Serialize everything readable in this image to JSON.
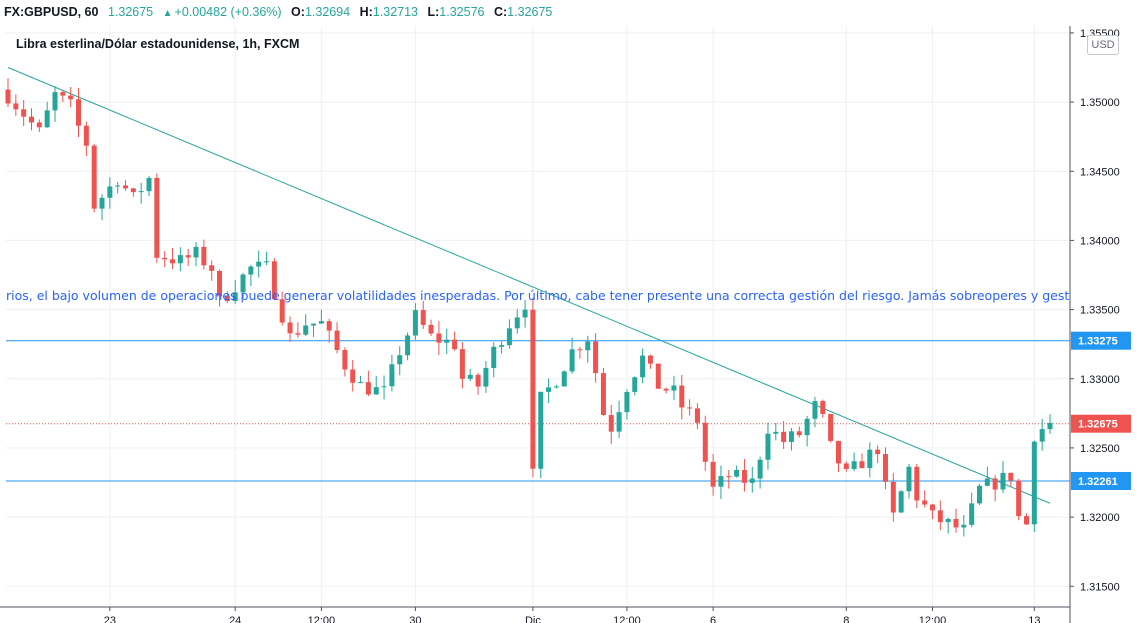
{
  "header": {
    "symbol": "FX:GBPUSD, 60",
    "last": "1.32675",
    "change": "+0.00482 (+0.36%)",
    "open_label": "O:",
    "open": "1.32694",
    "high_label": "H:",
    "high": "1.32713",
    "low_label": "L:",
    "low": "1.32576",
    "close_label": "C:",
    "close": "1.32675"
  },
  "ticker_text": "rios, el bajo volumen de operaciones puede generar volatilidades inesperadas. Por último, cabe tener presente una correcta gestión del riesgo. Jamás sobreoperes y gest",
  "currency_button": "USD",
  "colors": {
    "up": "#26a69a",
    "down": "#ef5350",
    "line": "#2196f3",
    "trend": "#26a69a",
    "price": "#ef5350",
    "text": "#2962ff"
  },
  "chart_data": {
    "type": "candlestick",
    "title": "Libra esterlina/Dólar estadounidense, 1h, FXCM",
    "ylim": [
      1.3135,
      1.3555
    ],
    "y_ticks": [
      "1.35500",
      "1.35000",
      "1.34500",
      "1.34000",
      "1.33500",
      "1.33000",
      "1.32500",
      "1.32000",
      "1.31500"
    ],
    "y_tick_values": [
      1.355,
      1.35,
      1.345,
      1.34,
      1.335,
      1.33,
      1.325,
      1.32,
      1.315
    ],
    "x_ticks": [
      "23",
      "24",
      "12:00",
      "30",
      "Dic",
      "12:00",
      "6",
      "8",
      "12:00",
      "13"
    ],
    "x_tick_index": [
      13,
      29,
      40,
      52,
      67,
      79,
      90,
      107,
      118,
      131
    ],
    "horizontal_lines": [
      {
        "price": 1.33275,
        "label": "1.33275"
      },
      {
        "price": 1.32261,
        "label": "1.32261"
      }
    ],
    "current_price": {
      "price": 1.32675,
      "label": "1.32675"
    },
    "trendline": {
      "from_index": 0,
      "from_price": 1.3525,
      "to_index": 133,
      "to_price": 1.321
    },
    "candle_count": 134,
    "close_path": [
      [
        0,
        1.3505
      ],
      [
        4,
        1.3478
      ],
      [
        6,
        1.3505
      ],
      [
        8,
        1.3497
      ],
      [
        9,
        1.3482
      ],
      [
        10,
        1.347
      ],
      [
        11,
        1.3425
      ],
      [
        14,
        1.3445
      ],
      [
        16,
        1.343
      ],
      [
        18,
        1.3445
      ],
      [
        19,
        1.339
      ],
      [
        22,
        1.3385
      ],
      [
        24,
        1.339
      ],
      [
        26,
        1.338
      ],
      [
        27,
        1.3355
      ],
      [
        31,
        1.338
      ],
      [
        33,
        1.338
      ],
      [
        36,
        1.333
      ],
      [
        38,
        1.334
      ],
      [
        40,
        1.334
      ],
      [
        43,
        1.331
      ],
      [
        45,
        1.3295
      ],
      [
        48,
        1.329
      ],
      [
        50,
        1.332
      ],
      [
        52,
        1.3345
      ],
      [
        54,
        1.333
      ],
      [
        57,
        1.3325
      ],
      [
        58,
        1.33
      ],
      [
        60,
        1.3295
      ],
      [
        62,
        1.332
      ],
      [
        64,
        1.334
      ],
      [
        66,
        1.3355
      ],
      [
        67,
        1.323
      ],
      [
        68,
        1.3285
      ],
      [
        70,
        1.33
      ],
      [
        72,
        1.332
      ],
      [
        74,
        1.333
      ],
      [
        75,
        1.3305
      ],
      [
        76,
        1.3275
      ],
      [
        77,
        1.3265
      ],
      [
        79,
        1.3295
      ],
      [
        81,
        1.3315
      ],
      [
        83,
        1.3295
      ],
      [
        85,
        1.329
      ],
      [
        86,
        1.328
      ],
      [
        88,
        1.327
      ],
      [
        89,
        1.324
      ],
      [
        90,
        1.322
      ],
      [
        92,
        1.323
      ],
      [
        95,
        1.3225
      ],
      [
        97,
        1.3265
      ],
      [
        99,
        1.3255
      ],
      [
        101,
        1.326
      ],
      [
        103,
        1.328
      ],
      [
        104,
        1.327
      ],
      [
        105,
        1.325
      ],
      [
        107,
        1.323
      ],
      [
        109,
        1.324
      ],
      [
        111,
        1.325
      ],
      [
        112,
        1.322
      ],
      [
        113,
        1.32
      ],
      [
        115,
        1.3235
      ],
      [
        116,
        1.3215
      ],
      [
        118,
        1.32
      ],
      [
        120,
        1.3195
      ],
      [
        122,
        1.319
      ],
      [
        124,
        1.322
      ],
      [
        126,
        1.3225
      ],
      [
        128,
        1.323
      ],
      [
        129,
        1.32
      ],
      [
        130,
        1.3195
      ],
      [
        131,
        1.326
      ],
      [
        133,
        1.3268
      ]
    ]
  }
}
